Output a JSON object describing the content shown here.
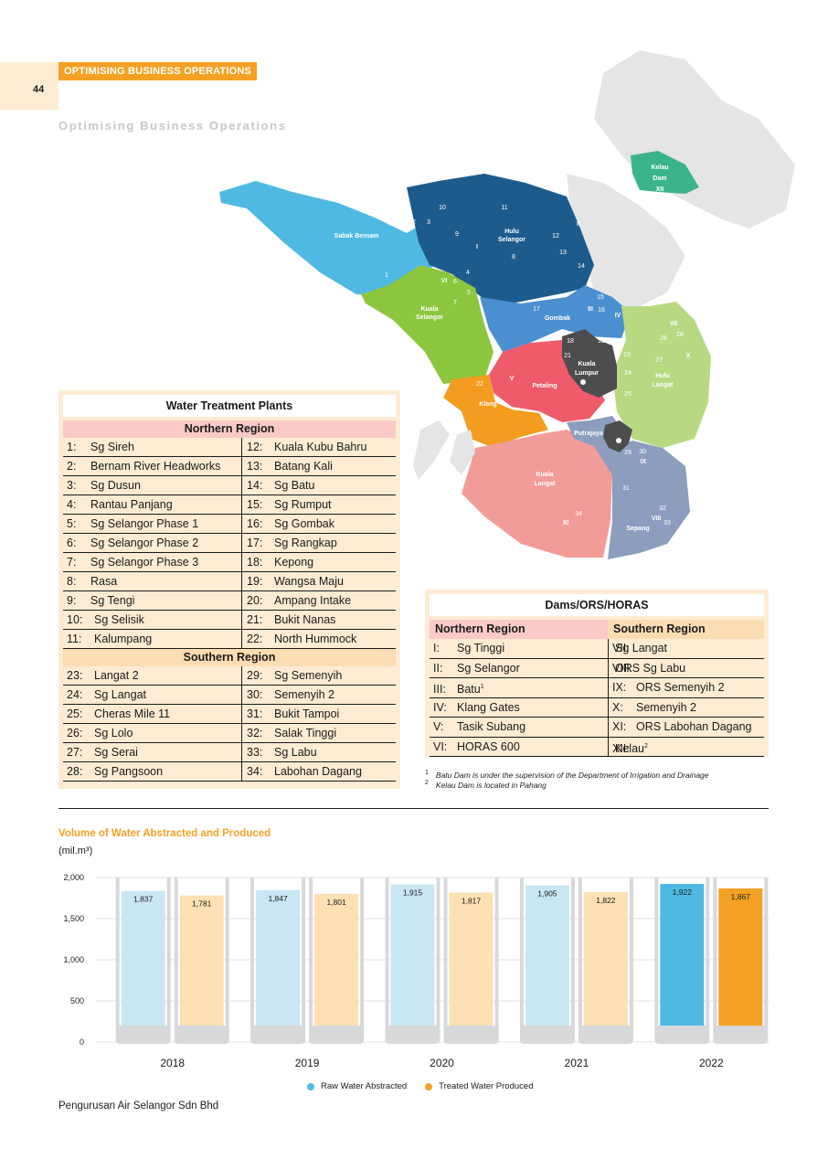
{
  "header": {
    "page_number": "44",
    "section_tag": "OPTIMISING BUSINESS OPERATIONS",
    "section_subtitle": "Optimising Business Operations"
  },
  "map": {
    "regions": [
      "Sabak Bernam",
      "Hulu Selangor",
      "Kuala Selangor",
      "Gombak",
      "Petaling",
      "Klang",
      "Kuala Lumpur",
      "Hulu Langat",
      "Putrajaya",
      "Kuala Langat",
      "Sepang"
    ],
    "dam_label": [
      "Kelau",
      "Dam",
      "XII"
    ],
    "region_colors": {
      "sabak_bernam": "#4fb9e3",
      "hulu_selangor": "#1d5b8c",
      "kuala_selangor": "#8cc63f",
      "gombak": "#4a90d0",
      "petaling": "#ef5b6b",
      "klang": "#f39c1f",
      "kuala_lumpur": "#4d4d4f",
      "hulu_langat": "#b8d982",
      "kuala_langat": "#f29c99",
      "sepang": "#8c9dbe",
      "kelau_dam": "#3bb48b",
      "pahang": "#e5e5e5"
    }
  },
  "wtp": {
    "title": "Water Treatment Plants",
    "northern_label": "Northern Region",
    "southern_label": "Southern Region",
    "northern": [
      [
        "1:",
        "Sg Sireh",
        "12:",
        "Kuala Kubu Bahru"
      ],
      [
        "2:",
        "Bernam River Headworks",
        "13:",
        "Batang Kali"
      ],
      [
        "3:",
        "Sg Dusun",
        "14:",
        "Sg Batu"
      ],
      [
        "4:",
        "Rantau Panjang",
        "15:",
        "Sg Rumput"
      ],
      [
        "5:",
        "Sg Selangor Phase 1",
        "16:",
        "Sg Gombak"
      ],
      [
        "6:",
        "Sg Selangor Phase 2",
        "17:",
        "Sg Rangkap"
      ],
      [
        "7:",
        "Sg Selangor Phase 3",
        "18:",
        "Kepong"
      ],
      [
        "8:",
        "Rasa",
        "19:",
        "Wangsa Maju"
      ],
      [
        "9:",
        "Sg Tengi",
        "20:",
        "Ampang Intake"
      ],
      [
        "10:",
        "Sg Selisik",
        "21:",
        "Bukit Nanas"
      ],
      [
        "11:",
        "Kalumpang",
        "22:",
        "North Hummock"
      ]
    ],
    "southern": [
      [
        "23:",
        "Langat 2",
        "29:",
        "Sg Semenyih"
      ],
      [
        "24:",
        "Sg Langat",
        "30:",
        "Semenyih 2"
      ],
      [
        "25:",
        "Cheras Mile 11",
        "31:",
        "Bukit Tampoi"
      ],
      [
        "26:",
        "Sg Lolo",
        "32:",
        "Salak Tinggi"
      ],
      [
        "27:",
        "Sg Serai",
        "33:",
        "Sg Labu"
      ],
      [
        "28:",
        "Sg Pangsoon",
        "34:",
        "Labohan Dagang"
      ]
    ]
  },
  "dams": {
    "title": "Dams/ORS/HORAS",
    "northern_label": "Northern Region",
    "southern_label": "Southern Region",
    "rows": [
      [
        "I:",
        "Sg Tinggi",
        "",
        "VII:",
        "Sg Langat",
        ""
      ],
      [
        "II:",
        "Sg Selangor",
        "",
        "VIII:",
        "ORS Sg Labu",
        ""
      ],
      [
        "III:",
        "Batu",
        "1",
        "IX:",
        "ORS Semenyih 2",
        ""
      ],
      [
        "IV:",
        "Klang Gates",
        "",
        "X:",
        "Semenyih 2",
        ""
      ],
      [
        "V:",
        "Tasik Subang",
        "",
        "XI:",
        "ORS Labohan Dagang",
        ""
      ],
      [
        "VI:",
        "HORAS 600",
        "",
        "XII:",
        "Kelau",
        "2"
      ]
    ],
    "footnotes": [
      {
        "mark": "1",
        "text": "Batu Dam is under the supervision of the Department of Irrigation and Drainage"
      },
      {
        "mark": "2",
        "text": "Kelau Dam is located in Pahang"
      }
    ]
  },
  "chart_title": "Volume of Water Abstracted and Produced",
  "chart_unit": "(mil.m³)",
  "chart_data": {
    "type": "bar",
    "categories": [
      "2018",
      "2019",
      "2020",
      "2021",
      "2022"
    ],
    "series": [
      {
        "name": "Raw Water Abstracted",
        "values": [
          1837,
          1847,
          1915,
          1905,
          1922
        ],
        "labels": [
          "1,837",
          "1,847",
          "1,915",
          "1,905",
          "1,922"
        ]
      },
      {
        "name": "Treated Water Produced",
        "values": [
          1781,
          1801,
          1817,
          1822,
          1867
        ],
        "labels": [
          "1,781",
          "1,801",
          "1,817",
          "1,822",
          "1,867"
        ]
      }
    ],
    "y_ticks": [
      0,
      500,
      1000,
      1500,
      2000
    ],
    "y_tick_labels": [
      "0",
      "500",
      "1,000",
      "1,500",
      "2,000"
    ],
    "ylim": [
      0,
      2000
    ],
    "colors": {
      "raw": "#c9e6f4",
      "treated": "#fde0b4",
      "raw_highlight": "#4fb9e3",
      "treated_highlight": "#f4a024",
      "glass": "#d7d8da"
    },
    "highlight_index": 4,
    "legend_position": "bottom-center"
  },
  "footer": "Pengurusan Air Selangor Sdn Bhd"
}
